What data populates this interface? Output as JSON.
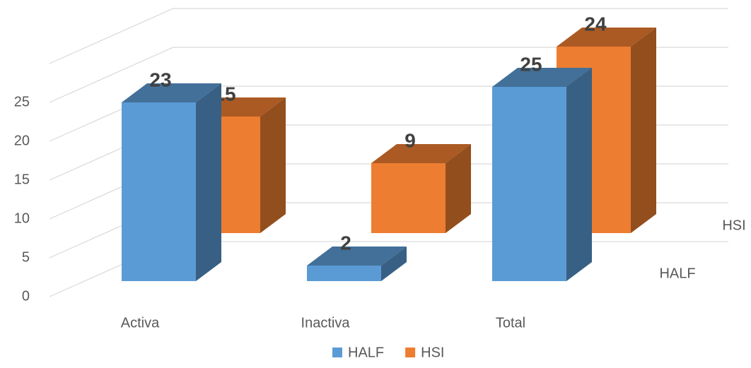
{
  "chart_data": {
    "type": "bar3d",
    "categories": [
      "Activa",
      "Inactiva",
      "Total"
    ],
    "series": [
      {
        "name": "HALF",
        "color": "#5b9bd5",
        "values": [
          23,
          2,
          25
        ]
      },
      {
        "name": "HSI",
        "color": "#ed7d31",
        "values": [
          15,
          9,
          24
        ]
      }
    ],
    "ylim": [
      0,
      30
    ],
    "yticks": [
      0,
      5,
      10,
      15,
      20,
      25
    ],
    "grid": true,
    "legend": "bottom"
  }
}
